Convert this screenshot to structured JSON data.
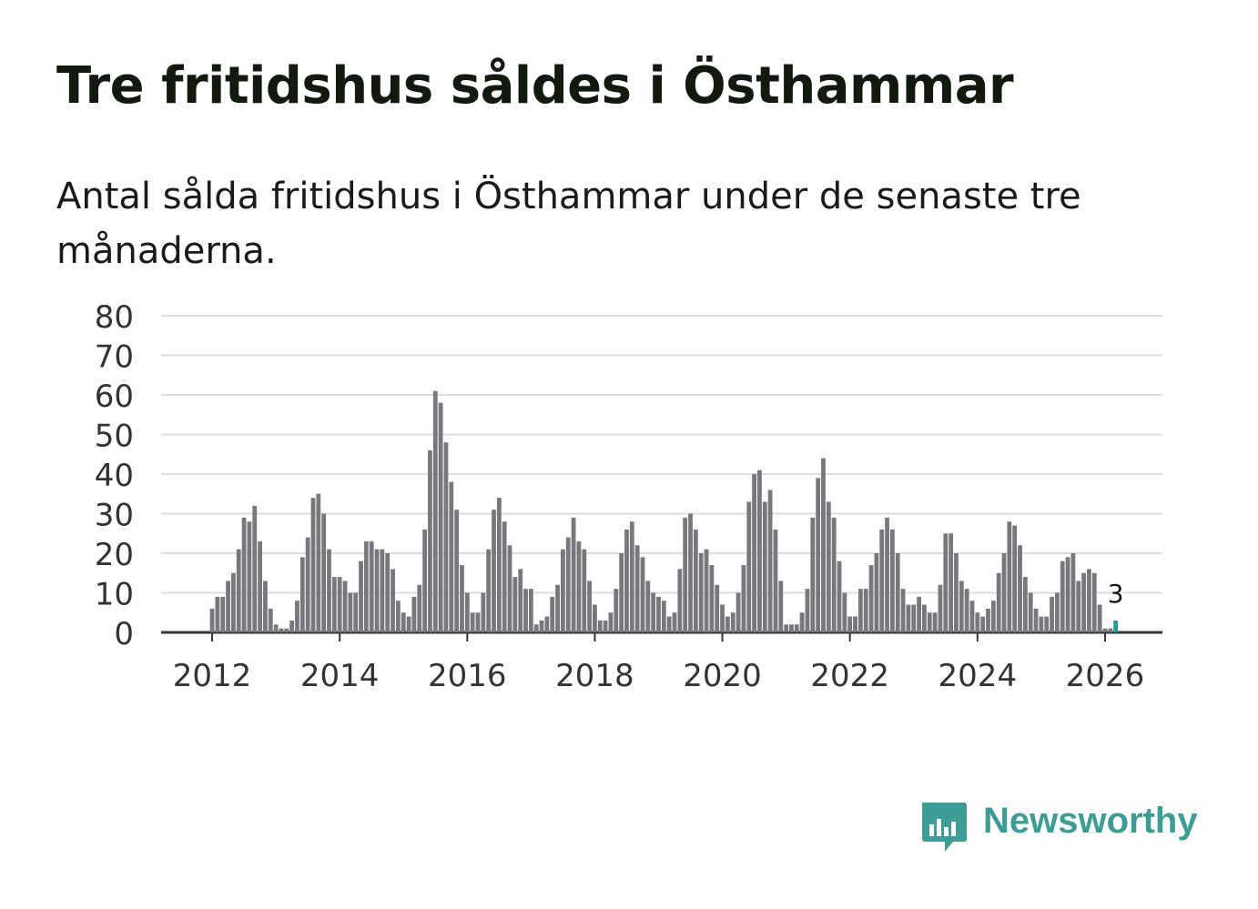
{
  "title": "Tre fritidshus såldes i Östhammar",
  "subtitle": "Antal sålda fritidshus i Östhammar under de senaste tre månaderna.",
  "brand": {
    "name": "Newsworthy",
    "color": "#3d9c93"
  },
  "colors": {
    "bar": "#78777c",
    "highlight": "#1e9e91",
    "grid": "#dddddd",
    "axis": "#333333"
  },
  "chart_data": {
    "type": "bar",
    "title": "Tre fritidshus såldes i Östhammar",
    "xlabel": "",
    "ylabel": "",
    "ylim": [
      0,
      80
    ],
    "yticks": [
      0,
      10,
      20,
      30,
      40,
      50,
      60,
      70,
      80
    ],
    "xlim": [
      2011.2,
      2026.9
    ],
    "xtick_labels": [
      "2012",
      "2014",
      "2016",
      "2018",
      "2020",
      "2022",
      "2024",
      "2026"
    ],
    "start": {
      "year": 2012,
      "month": 1
    },
    "series": [
      {
        "name": "Antal sålda fritidshus",
        "values": [
          6,
          9,
          9,
          13,
          15,
          21,
          29,
          28,
          32,
          23,
          13,
          6,
          2,
          1,
          1,
          3,
          8,
          19,
          24,
          34,
          35,
          30,
          21,
          14,
          14,
          13,
          10,
          10,
          18,
          23,
          23,
          21,
          21,
          20,
          16,
          8,
          5,
          4,
          9,
          12,
          26,
          46,
          61,
          58,
          48,
          38,
          31,
          17,
          10,
          5,
          5,
          10,
          21,
          31,
          34,
          28,
          22,
          14,
          16,
          11,
          11,
          2,
          3,
          4,
          9,
          12,
          21,
          24,
          29,
          23,
          21,
          13,
          7,
          3,
          3,
          5,
          11,
          20,
          26,
          28,
          22,
          19,
          13,
          10,
          9,
          8,
          4,
          5,
          16,
          29,
          30,
          26,
          20,
          21,
          17,
          12,
          7,
          4,
          5,
          10,
          17,
          33,
          40,
          41,
          33,
          36,
          26,
          13,
          2,
          2,
          2,
          5,
          11,
          29,
          39,
          44,
          33,
          29,
          18,
          10,
          4,
          4,
          11,
          11,
          17,
          20,
          26,
          29,
          26,
          20,
          11,
          7,
          7,
          9,
          7,
          5,
          5,
          12,
          25,
          25,
          20,
          13,
          11,
          8,
          5,
          4,
          6,
          8,
          15,
          20,
          28,
          27,
          22,
          14,
          10,
          6,
          4,
          4,
          9,
          10,
          18,
          19,
          20,
          13,
          15,
          16,
          15,
          7,
          1,
          1,
          3
        ]
      }
    ],
    "highlight": {
      "index": 170,
      "label": "3"
    }
  }
}
